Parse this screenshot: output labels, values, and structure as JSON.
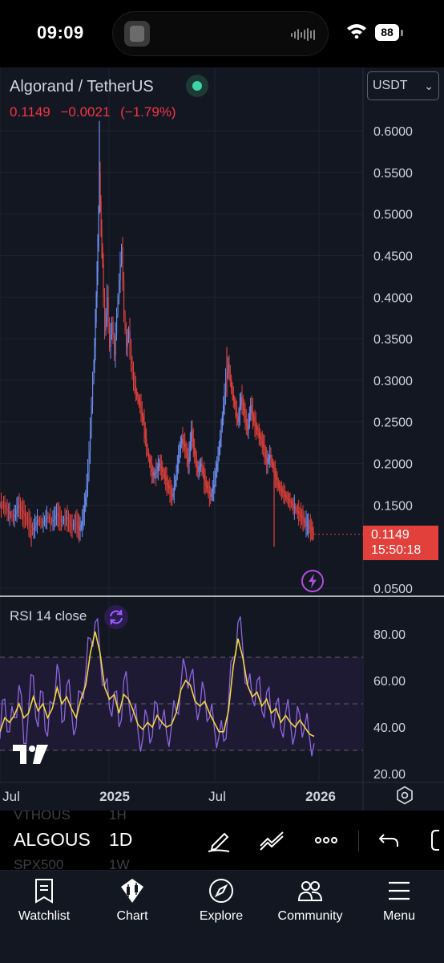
{
  "status_bar": {
    "time": "09:09",
    "battery": "88"
  },
  "header": {
    "symbol_name": "Algorand / TetherUS",
    "last_price": "0.1149",
    "change": "−0.0021",
    "change_percent": "(−1.79%)",
    "currency": "USDT",
    "countdown": "15:50:18"
  },
  "indicator": {
    "label": "RSI 14 close"
  },
  "colors": {
    "background": "#131722",
    "up": "#26a69a",
    "down": "#f23645",
    "candle_up": "#6b8ef0",
    "candle_down": "#e2403b",
    "rsi_line": "#8c66e0",
    "rsi_ma": "#f0d442",
    "price_tag": "#e2403b",
    "live_dot": "#3dd4a5"
  },
  "chart_data": [
    {
      "type": "candlestick",
      "title": "Algorand / TetherUS",
      "x_ticks": [
        "Jul",
        "2025",
        "Jul",
        "2026"
      ],
      "y_ticks": [
        "0.6000",
        "0.5500",
        "0.5000",
        "0.4500",
        "0.4000",
        "0.3500",
        "0.3000",
        "0.2500",
        "0.2000",
        "0.1500",
        "0.0500"
      ],
      "ylim": [
        0.05,
        0.6
      ],
      "grid": true,
      "last_value": 0.1149,
      "series": [
        {
          "x": [
            0,
            6,
            12,
            18,
            24,
            30,
            36,
            42,
            48,
            54,
            60,
            66,
            72,
            78,
            84,
            90,
            96,
            100,
            104,
            108,
            111,
            114,
            117,
            119,
            121,
            123,
            125,
            127,
            129,
            132,
            135,
            138,
            141,
            144,
            147,
            150,
            153,
            156,
            159,
            162,
            165,
            168,
            172,
            176,
            180,
            184,
            188,
            192,
            196,
            200,
            204,
            208,
            212,
            216,
            220,
            224,
            228,
            232,
            236,
            240,
            244,
            248,
            252,
            256,
            260,
            264,
            268,
            272,
            276,
            280,
            283,
            286,
            290,
            294,
            298,
            302,
            306,
            310,
            314,
            318,
            322,
            326,
            330,
            334,
            338,
            342,
            346,
            350,
            354,
            358,
            362,
            366,
            370,
            374,
            378,
            382,
            386,
            390
          ],
          "values": [
            0.15,
            0.14,
            0.135,
            0.15,
            0.14,
            0.13,
            0.12,
            0.132,
            0.128,
            0.136,
            0.13,
            0.14,
            0.13,
            0.135,
            0.124,
            0.13,
            0.12,
            0.13,
            0.16,
            0.19,
            0.24,
            0.3,
            0.34,
            0.4,
            0.46,
            0.55,
            0.48,
            0.44,
            0.36,
            0.4,
            0.34,
            0.37,
            0.33,
            0.38,
            0.42,
            0.46,
            0.38,
            0.34,
            0.36,
            0.32,
            0.3,
            0.28,
            0.27,
            0.25,
            0.22,
            0.2,
            0.185,
            0.19,
            0.2,
            0.19,
            0.18,
            0.17,
            0.16,
            0.18,
            0.21,
            0.23,
            0.22,
            0.2,
            0.24,
            0.21,
            0.19,
            0.2,
            0.18,
            0.17,
            0.16,
            0.175,
            0.2,
            0.23,
            0.27,
            0.3,
            0.32,
            0.29,
            0.27,
            0.25,
            0.28,
            0.26,
            0.24,
            0.27,
            0.25,
            0.24,
            0.23,
            0.22,
            0.2,
            0.21,
            0.195,
            0.18,
            0.17,
            0.165,
            0.16,
            0.155,
            0.15,
            0.145,
            0.14,
            0.135,
            0.128,
            0.125,
            0.12,
            0.1149
          ]
        }
      ]
    },
    {
      "type": "line",
      "title": "RSI 14 close",
      "y_ticks": [
        "80.00",
        "60.00",
        "40.00",
        "20.00"
      ],
      "ylim": [
        20,
        80
      ],
      "bands": [
        70,
        50,
        30
      ],
      "series": [
        {
          "values": [
            35,
            52,
            38,
            44,
            58,
            33,
            47,
            62,
            40,
            55,
            36,
            50,
            67,
            42,
            58,
            47,
            40,
            55,
            63,
            78,
            85,
            72,
            58,
            48,
            55,
            40,
            60,
            52,
            46,
            38,
            35,
            44,
            36,
            50,
            42,
            37,
            40,
            47,
            58,
            65,
            62,
            52,
            48,
            55,
            44,
            40,
            36,
            34,
            50,
            70,
            85,
            74,
            58,
            52,
            60,
            47,
            55,
            43,
            50,
            39,
            46,
            42,
            37,
            45,
            40,
            36,
            33
          ]
        },
        {
          "values": [
            38,
            44,
            42,
            45,
            50,
            44,
            46,
            53,
            47,
            50,
            44,
            48,
            57,
            50,
            53,
            48,
            44,
            52,
            58,
            72,
            81,
            72,
            57,
            52,
            54,
            46,
            54,
            52,
            47,
            41,
            39,
            42,
            40,
            45,
            42,
            40,
            41,
            46,
            56,
            60,
            58,
            51,
            49,
            51,
            46,
            42,
            38,
            38,
            47,
            66,
            78,
            70,
            58,
            53,
            55,
            49,
            52,
            46,
            48,
            42,
            45,
            42,
            40,
            43,
            40,
            37,
            36
          ]
        }
      ]
    }
  ],
  "toolbar": {
    "symbols": {
      "prev": "VTHOUS",
      "current": "ALGOUS",
      "next": "SPX500"
    },
    "intervals": {
      "prev": "1H",
      "current": "1D",
      "next": "1W"
    }
  },
  "nav": {
    "items": [
      {
        "label": "Watchlist",
        "icon": "watchlist-icon"
      },
      {
        "label": "Chart",
        "icon": "chart-icon"
      },
      {
        "label": "Explore",
        "icon": "compass-icon"
      },
      {
        "label": "Community",
        "icon": "community-icon"
      },
      {
        "label": "Menu",
        "icon": "menu-icon"
      }
    ]
  }
}
